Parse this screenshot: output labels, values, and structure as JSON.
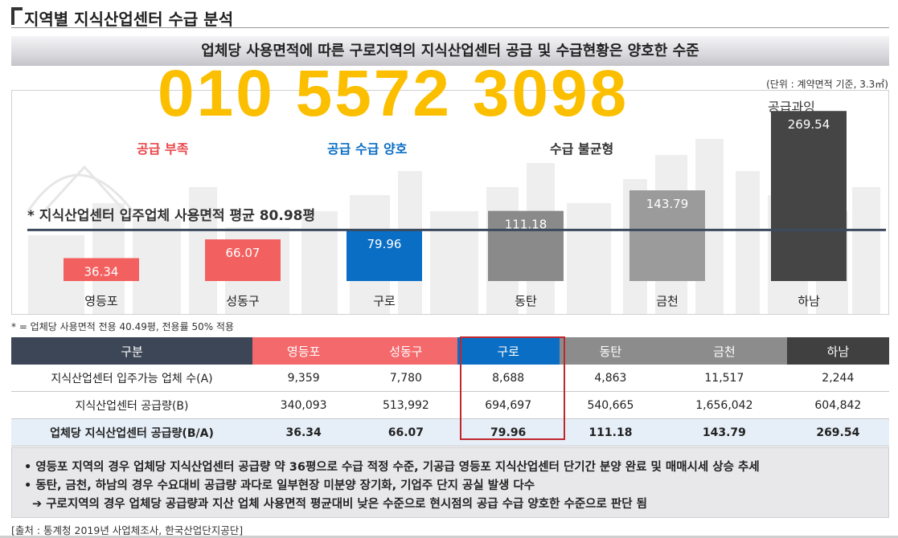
{
  "header": {
    "title": "지역별 지식산업센터 수급 분석",
    "banner": "업체당 사용면적에 따른 구로지역의 지식산업센터 공급 및 수급현황은 양호한 수준"
  },
  "overlay_phone": "010 5572 3098",
  "unit_note": "(단위 : 계약면적 기준, 3.3㎡)",
  "zones": {
    "shortage": "공급 부족",
    "good": "공급 수급 양호",
    "imbalance": "수급 불균형",
    "oversupply": "공급과잉"
  },
  "avg_label": "* 지식산업센터 입주업체 사용면적 평균 80.98평",
  "chart_data": {
    "type": "bar",
    "categories": [
      "영등포",
      "성동구",
      "구로",
      "동탄",
      "금천",
      "하남"
    ],
    "values": [
      36.34,
      66.07,
      79.96,
      111.18,
      143.79,
      269.54
    ],
    "value_labels": [
      "36.34",
      "66.07",
      "79.96",
      "111.18",
      "143.79",
      "269.54"
    ],
    "average": 80.98,
    "colors": [
      "#f36060",
      "#f36060",
      "#0a6ec4",
      "#8a8a8a",
      "#9b9b9b",
      "#454545"
    ],
    "title": "",
    "xlabel": "",
    "ylabel": "",
    "ylim": [
      0,
      280
    ],
    "grid": false
  },
  "footnote": "* = 업체당 사용면적 전용 40.49평, 전용률 50% 적용",
  "table": {
    "header_label": "구분",
    "columns": [
      "영등포",
      "성동구",
      "구로",
      "동탄",
      "금천",
      "하남"
    ],
    "header_colors": [
      "#f3696c",
      "#f3696c",
      "#0a6ec4",
      "#8c8c8c",
      "#8c8c8c",
      "#404040"
    ],
    "rows": [
      {
        "label": "지식산업센터 입주가능 업체 수(A)",
        "values": [
          "9,359",
          "7,780",
          "8,688",
          "4,863",
          "11,517",
          "2,244"
        ]
      },
      {
        "label": "지식산업센터 공급량(B)",
        "values": [
          "340,093",
          "513,992",
          "694,697",
          "540,665",
          "1,656,042",
          "604,842"
        ]
      },
      {
        "label": "업체당 지식산업센터 공급량(B/A)",
        "values": [
          "36.34",
          "66.07",
          "79.96",
          "111.18",
          "143.79",
          "269.54"
        ]
      }
    ]
  },
  "summary": {
    "line1": "• 영등포 지역의 경우 업체당 지식산업센터 공급량 약 36평으로 수급 적정 수준, 기공급 영등포 지식산업센터 단기간 분양 완료 및 매매시세 상승 추세",
    "line2": "• 동탄, 금천, 하남의 경우 수요대비 공급량 과다로 일부현장 미분양 장기화, 기업주 단지 공실 발생 다수",
    "line3": "➔ 구로지역의 경우 업체당 공급량과 지산 업체 사용면적 평균대비 낮은 수준으로 현시점의 공급 수급 양호한 수준으로 판단 됨"
  },
  "source": "[출처 : 통계청 2019년 사업체조사, 한국산업단지공단]"
}
